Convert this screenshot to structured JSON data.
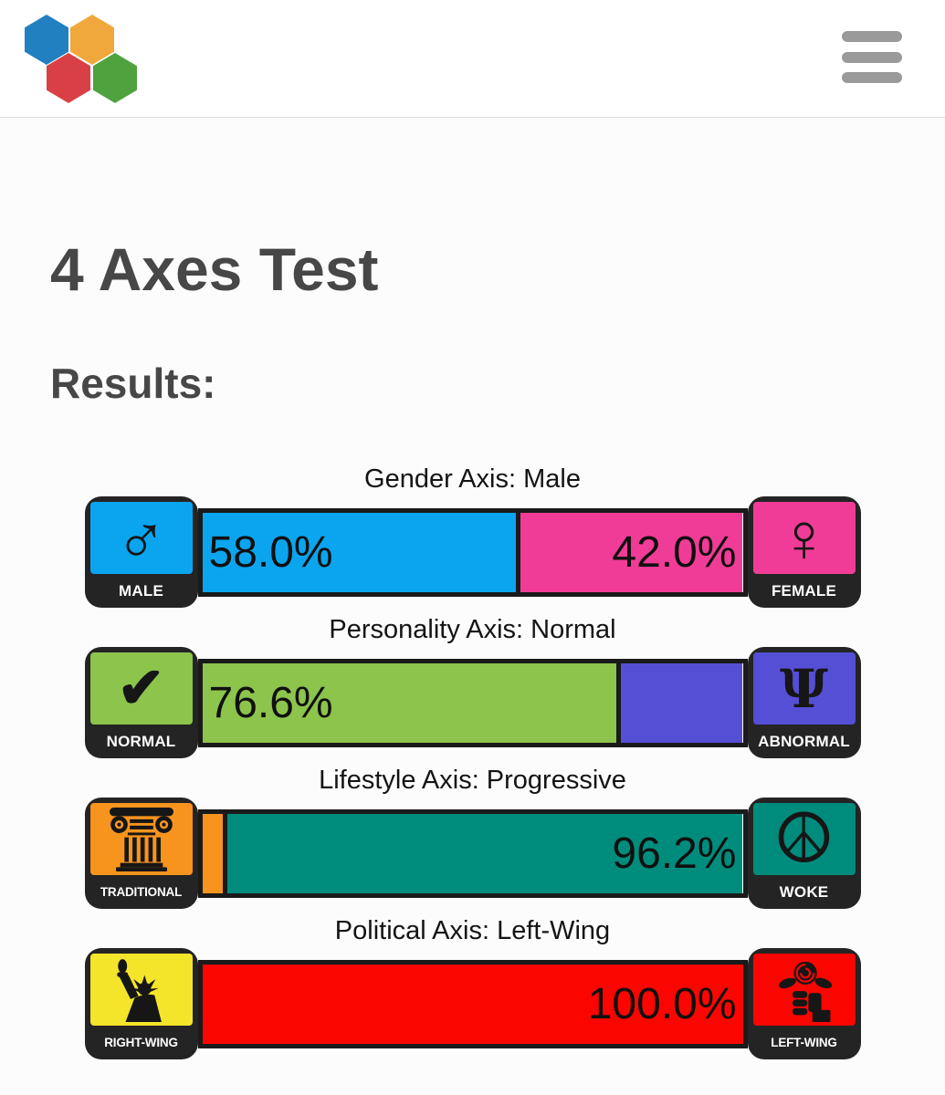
{
  "header": {
    "logo": {
      "name": "hex-logo",
      "colors": {
        "blue": "#2180c0",
        "orange": "#f0a83d",
        "red": "#d94045",
        "green": "#4fa23e"
      }
    },
    "menu_color": "#9a9a9a"
  },
  "page": {
    "title": "4 Axes Test",
    "results_heading": "Results:"
  },
  "axes": [
    {
      "title": "Gender Axis: Male",
      "left_icon": {
        "name": "male-icon",
        "label": "MALE",
        "glyph": "♂",
        "glyph_class": "male",
        "bg": "#0aa5ee"
      },
      "right_icon": {
        "name": "female-icon",
        "label": "FEMALE",
        "glyph": "♀",
        "glyph_class": "female",
        "bg": "#f03c96"
      },
      "segments": [
        {
          "name": "male",
          "pct": 58.0,
          "color": "#0aa5ee",
          "value_label": "58.0%",
          "align": "left"
        },
        {
          "name": "female",
          "pct": 42.0,
          "color": "#f03c96",
          "value_label": "42.0%",
          "align": "right"
        }
      ]
    },
    {
      "title": "Personality Axis: Normal",
      "left_icon": {
        "name": "normal-icon",
        "label": "NORMAL",
        "glyph": "✔",
        "glyph_class": "check",
        "bg": "#8cc44c"
      },
      "right_icon": {
        "name": "abnormal-icon",
        "label": "ABNORMAL",
        "glyph": "Ψ",
        "glyph_class": "psi",
        "bg": "#554fd6"
      },
      "segments": [
        {
          "name": "normal",
          "pct": 76.6,
          "color": "#8cc44c",
          "value_label": "76.6%",
          "align": "left"
        },
        {
          "name": "abnormal",
          "pct": 23.4,
          "color": "#554fd6",
          "value_label": "",
          "align": ""
        }
      ]
    },
    {
      "title": "Lifestyle Axis: Progressive",
      "left_icon": {
        "name": "traditional-icon",
        "label": "TRADITIONAL",
        "svg": "column",
        "bg": "#f7941e"
      },
      "right_icon": {
        "name": "woke-icon",
        "label": "WOKE",
        "glyph": "☮",
        "glyph_class": "peace",
        "bg": "#008c7d"
      },
      "segments": [
        {
          "name": "traditional",
          "pct": 3.8,
          "color": "#f7941e",
          "value_label": "",
          "align": ""
        },
        {
          "name": "woke",
          "pct": 96.2,
          "color": "#008c7d",
          "value_label": "96.2%",
          "align": "right"
        }
      ]
    },
    {
      "title": "Political Axis: Left-Wing",
      "left_icon": {
        "name": "right-wing-icon",
        "label": "RIGHT-WING",
        "svg": "statue",
        "bg": "#f4e52a"
      },
      "right_icon": {
        "name": "left-wing-icon",
        "label": "LEFT-WING",
        "svg": "rosefist",
        "bg": "#fb0500"
      },
      "segments": [
        {
          "name": "right-wing",
          "pct": 0,
          "color": "#f4e52a",
          "value_label": "",
          "align": ""
        },
        {
          "name": "left-wing",
          "pct": 100.0,
          "color": "#fb0500",
          "value_label": "100.0%",
          "align": "right"
        }
      ]
    }
  ]
}
